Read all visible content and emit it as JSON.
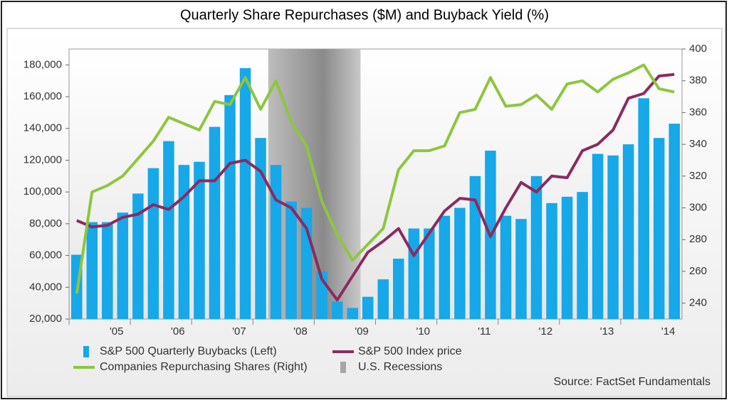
{
  "chart_data": {
    "type": "bar",
    "title": "Quarterly Share Repurchases ($M) and Buyback Yield (%)",
    "source": "Source: FactSet Fundamentals",
    "categories": [
      null,
      null,
      null,
      "'05",
      null,
      null,
      null,
      "'06",
      null,
      null,
      null,
      "'07",
      null,
      null,
      null,
      "'08",
      null,
      null,
      null,
      "'09",
      null,
      null,
      null,
      "'10",
      null,
      null,
      null,
      "'11",
      null,
      null,
      null,
      "'12",
      null,
      null,
      null,
      "'13",
      null,
      null,
      null,
      "'14"
    ],
    "ylim": [
      20000,
      190000
    ],
    "yticks": [
      {
        "value": 20000,
        "label": "20,000"
      },
      {
        "value": 40000,
        "label": "40,000"
      },
      {
        "value": 60000,
        "label": "60,000"
      },
      {
        "value": 80000,
        "label": "80,000"
      },
      {
        "value": 100000,
        "label": "100,000"
      },
      {
        "value": 120000,
        "label": "120,000"
      },
      {
        "value": 140000,
        "label": "140,000"
      },
      {
        "value": 160000,
        "label": "160,000"
      },
      {
        "value": 180000,
        "label": "180,000"
      }
    ],
    "y2lim": [
      230,
      400
    ],
    "y2ticks": [
      240,
      260,
      280,
      300,
      320,
      340,
      360,
      380,
      400
    ],
    "series": [
      {
        "name": "S&P 500 Quarterly Buybacks (Left)",
        "type": "bar",
        "color": "#16a8e8",
        "values": [
          60500,
          81000,
          81000,
          87000,
          99000,
          115000,
          132000,
          117000,
          119000,
          141000,
          161000,
          178000,
          134000,
          117000,
          94000,
          90000,
          50000,
          31000,
          27000,
          34000,
          45000,
          58000,
          77000,
          77000,
          85000,
          90000,
          110000,
          126000,
          85000,
          83000,
          110000,
          93000,
          97000,
          100000,
          124000,
          123000,
          130000,
          159000,
          134000,
          143000
        ]
      },
      {
        "name": "S&P 500 Index price",
        "type": "line",
        "axis": "y2",
        "color": "#8b2a60",
        "values": [
          292,
          288,
          289,
          294,
          296,
          302,
          299,
          307,
          317,
          317,
          328,
          330,
          323,
          305,
          300,
          287,
          255,
          242,
          257,
          272,
          279,
          287,
          270,
          284,
          298,
          306,
          305,
          282,
          300,
          316,
          310,
          320,
          319,
          336,
          340,
          349,
          369,
          372,
          383,
          384
        ]
      },
      {
        "name": "Companies Repurchasing Shares (Right)",
        "type": "line",
        "axis": "y2",
        "color": "#8dc63f",
        "values": [
          246,
          310,
          314,
          320,
          331,
          342,
          357,
          353,
          349,
          367,
          365,
          382,
          362,
          380,
          354,
          339,
          304,
          283,
          267,
          277,
          287,
          324,
          336,
          336,
          339,
          360,
          362,
          382,
          364,
          365,
          371,
          362,
          378,
          380,
          373,
          381,
          385,
          390,
          375,
          373
        ]
      },
      {
        "name": "U.S. Recessions",
        "type": "band",
        "color": "#a6a6a6",
        "values": [
          false,
          false,
          false,
          false,
          false,
          false,
          false,
          false,
          false,
          false,
          false,
          false,
          false,
          true,
          true,
          true,
          true,
          true,
          true,
          false,
          false,
          false,
          false,
          false,
          false,
          false,
          false,
          false,
          false,
          false,
          false,
          false,
          false,
          false,
          false,
          false,
          false,
          false,
          false,
          false
        ]
      }
    ]
  }
}
